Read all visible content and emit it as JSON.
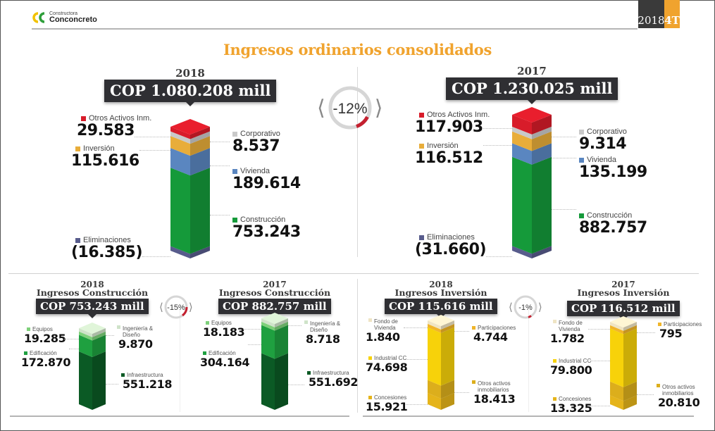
{
  "header": {
    "logo_small": "Constructora",
    "logo_big": "Conconcreto",
    "period_year": "2018",
    "period_quarter": "4T",
    "colors": {
      "accent": "#f0a32e",
      "dark": "#3a3a3a",
      "logo_yellow": "#f2c200",
      "logo_green": "#2e9e3a"
    }
  },
  "title": "Ingresos ordinarios consolidados",
  "chart_data": [
    {
      "type": "bar",
      "id": "consolidated-2018",
      "title": "2018",
      "total_label": "COP 1.080.208 mill",
      "stacked": true,
      "series": [
        {
          "name": "Eliminaciones",
          "value": -16385,
          "display": "(16.385)",
          "color": "#585c8c",
          "side": "left"
        },
        {
          "name": "Construcción",
          "value": 753243,
          "display": "753.243",
          "color": "#159a3a",
          "side": "right"
        },
        {
          "name": "Vivienda",
          "value": 189614,
          "display": "189.614",
          "color": "#5a86c0",
          "side": "right"
        },
        {
          "name": "Inversión",
          "value": 115616,
          "display": "115.616",
          "color": "#e8ad3a",
          "side": "left"
        },
        {
          "name": "Corporativo",
          "value": 8537,
          "display": "8.537",
          "color": "#c9c9c9",
          "side": "right"
        },
        {
          "name": "Otros Activos Inm.",
          "value": 29583,
          "display": "29.583",
          "color": "#d81c2a",
          "side": "left"
        }
      ]
    },
    {
      "type": "bar",
      "id": "consolidated-2017",
      "title": "2017",
      "total_label": "COP 1.230.025 mill",
      "stacked": true,
      "series": [
        {
          "name": "Eliminaciones",
          "value": -31660,
          "display": "(31.660)",
          "color": "#585c8c",
          "side": "left"
        },
        {
          "name": "Construcción",
          "value": 882757,
          "display": "882.757",
          "color": "#159a3a",
          "side": "right"
        },
        {
          "name": "Vivienda",
          "value": 135199,
          "display": "135.199",
          "color": "#5a86c0",
          "side": "right"
        },
        {
          "name": "Inversión",
          "value": 116512,
          "display": "116.512",
          "color": "#e8ad3a",
          "side": "left"
        },
        {
          "name": "Corporativo",
          "value": 9314,
          "display": "9.314",
          "color": "#c9c9c9",
          "side": "right"
        },
        {
          "name": "Otros Activos Inm.",
          "value": 117903,
          "display": "117.903",
          "color": "#d81c2a",
          "side": "left"
        }
      ]
    },
    {
      "type": "bar",
      "id": "construction-2018",
      "title": "2018",
      "subtitle": "Ingresos Construcción",
      "total_label": "COP 753.243 mill",
      "stacked": true,
      "series": [
        {
          "name": "Infraestructura",
          "value": 551218,
          "display": "551.218",
          "color": "#0b5a25",
          "side": "right"
        },
        {
          "name": "Edificación",
          "value": 172870,
          "display": "172.870",
          "color": "#1fa040",
          "side": "left"
        },
        {
          "name": "Equipos",
          "value": 19285,
          "display": "19.285",
          "color": "#7ed07a",
          "side": "left"
        },
        {
          "name": "Ingeniería & Diseño",
          "value": 9870,
          "display": "9.870",
          "color": "#cfe3c9",
          "side": "right"
        }
      ]
    },
    {
      "type": "bar",
      "id": "construction-2017",
      "title": "2017",
      "subtitle": "Ingresos Construcción",
      "total_label": "COP 882.757 mill",
      "stacked": true,
      "series": [
        {
          "name": "Infraestructura",
          "value": 551692,
          "display": "551.692",
          "color": "#0b5a25",
          "side": "right"
        },
        {
          "name": "Edificación",
          "value": 304164,
          "display": "304.164",
          "color": "#1fa040",
          "side": "left"
        },
        {
          "name": "Equipos",
          "value": 18183,
          "display": "18.183",
          "color": "#7ed07a",
          "side": "left"
        },
        {
          "name": "Ingeniería & Diseño",
          "value": 8718,
          "display": "8.718",
          "color": "#cfe3c9",
          "side": "right"
        }
      ]
    },
    {
      "type": "bar",
      "id": "investment-2018",
      "title": "2018",
      "subtitle": "Ingresos Inversión",
      "total_label": "COP 115.616 mill",
      "stacked": true,
      "series": [
        {
          "name": "Concesiones",
          "value": 15921,
          "display": "15.921",
          "color": "#e5b41a",
          "side": "left"
        },
        {
          "name": "Otros activos inmobiliarios",
          "value": 18413,
          "display": "18.413",
          "color": "#dcae1c",
          "side": "right"
        },
        {
          "name": "Industrial CC",
          "value": 74698,
          "display": "74.698",
          "color": "#f7d20a",
          "side": "left"
        },
        {
          "name": "Participaciones",
          "value": 4744,
          "display": "4.744",
          "color": "#f0b52a",
          "side": "right"
        },
        {
          "name": "Fondo de Vivienda",
          "value": 1840,
          "display": "1.840",
          "color": "#efe4c4",
          "side": "left"
        }
      ]
    },
    {
      "type": "bar",
      "id": "investment-2017",
      "title": "2017",
      "subtitle": "Ingresos Inversión",
      "total_label": "COP 116.512 mill",
      "stacked": true,
      "series": [
        {
          "name": "Concesiones",
          "value": 13325,
          "display": "13.325",
          "color": "#e5b41a",
          "side": "left"
        },
        {
          "name": "Otros activos inmobiliarios",
          "value": 20810,
          "display": "20.810",
          "color": "#dcae1c",
          "side": "right"
        },
        {
          "name": "Industrial CC",
          "value": 79800,
          "display": "79.800",
          "color": "#f7d20a",
          "side": "left"
        },
        {
          "name": "Participaciones",
          "value": 795,
          "display": "795",
          "color": "#f0b52a",
          "side": "right"
        },
        {
          "name": "Fondo de Vivienda",
          "value": 1782,
          "display": "1.782",
          "color": "#efe4c4",
          "side": "left"
        }
      ]
    }
  ],
  "changes": [
    {
      "id": "consolidated",
      "label": "-12%",
      "value": -12
    },
    {
      "id": "construction",
      "label": "-15%",
      "value": -15
    },
    {
      "id": "investment",
      "label": "-1%",
      "value": -1
    }
  ]
}
